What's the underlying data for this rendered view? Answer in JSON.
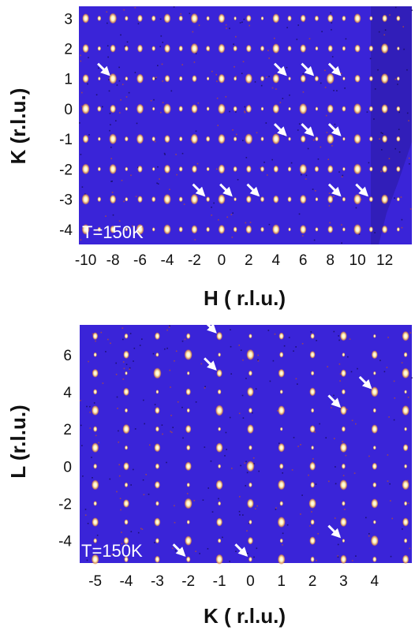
{
  "chart_data": [
    {
      "type": "heatmap",
      "panel": "top",
      "annotation": "T=150K",
      "xlabel": "H ( r.l.u.)",
      "ylabel": "K (r.l.u.)",
      "xlim": [
        -10.5,
        14
      ],
      "ylim": [
        -4.5,
        3.4
      ],
      "xticks": [
        -10,
        -8,
        -6,
        -4,
        -2,
        0,
        2,
        4,
        6,
        8,
        10,
        12
      ],
      "yticks": [
        3,
        2,
        1,
        0,
        -1,
        -2,
        -3,
        -4
      ],
      "background_color": "#3a24d8",
      "spot_color": "#fff3c0",
      "arrow_color": "#ffffff",
      "bragg_peaks": {
        "h_values": [
          -10,
          -8,
          -6,
          -4,
          -2,
          0,
          2,
          4,
          6,
          8,
          10,
          12
        ],
        "k_values": [
          3,
          2,
          1,
          0,
          -1,
          -2,
          -3,
          -4
        ],
        "also_half_integer_h": true
      },
      "arrows": [
        [
          -8,
          1
        ],
        [
          5,
          1
        ],
        [
          7,
          1
        ],
        [
          9,
          1
        ],
        [
          5,
          -1
        ],
        [
          7,
          -1
        ],
        [
          9,
          -1
        ],
        [
          -1,
          -3
        ],
        [
          1,
          -3
        ],
        [
          3,
          -3
        ],
        [
          9,
          -3
        ],
        [
          11,
          -3
        ]
      ]
    },
    {
      "type": "heatmap",
      "panel": "bottom",
      "annotation": "T=150K",
      "xlabel": "K ( r.l.u.)",
      "ylabel": "L (r.l.u.)",
      "xlim": [
        -5.5,
        5.2
      ],
      "ylim": [
        -5.2,
        7.6
      ],
      "xticks": [
        -5,
        -4,
        -3,
        -2,
        -1,
        0,
        1,
        2,
        3,
        4
      ],
      "yticks": [
        6,
        4,
        2,
        0,
        -2,
        -4
      ],
      "background_color": "#3a24d8",
      "spot_color": "#fff3c0",
      "arrow_color": "#ffffff",
      "bragg_peaks": {
        "k_values": [
          -5,
          -4,
          -3,
          -2,
          -1,
          0,
          1,
          2,
          3,
          4,
          5
        ],
        "l_values": [
          7,
          6,
          5,
          4,
          3,
          2,
          1,
          0,
          -1,
          -2,
          -3,
          -4,
          -5
        ]
      },
      "arrows": [
        [
          -1,
          7
        ],
        [
          -1,
          5
        ],
        [
          3,
          3
        ],
        [
          4,
          4
        ],
        [
          3,
          -4
        ],
        [
          -2,
          -5
        ],
        [
          0,
          -5
        ]
      ]
    }
  ]
}
